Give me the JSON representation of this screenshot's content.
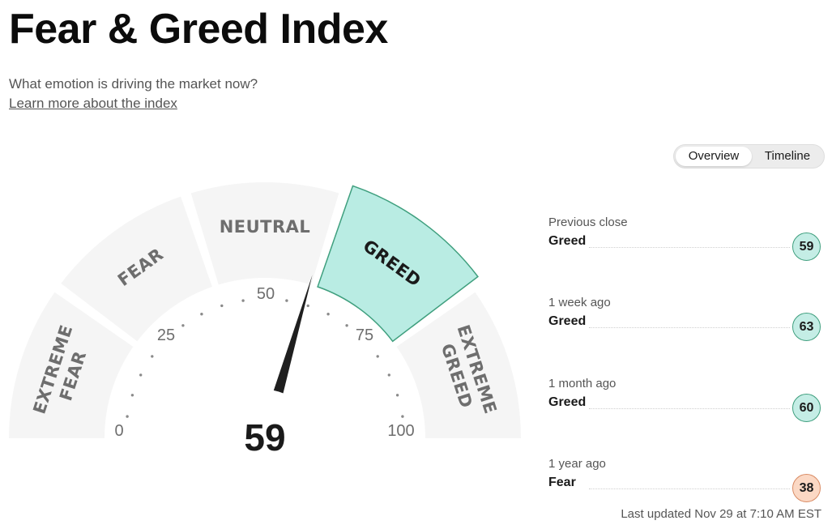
{
  "header": {
    "title": "Fear & Greed Index",
    "subtitle": "What emotion is driving the market now?",
    "learn_more": "Learn more about the index"
  },
  "gauge": {
    "value": "59",
    "min": 0,
    "max": 100,
    "active_zone": "GREED",
    "zones": [
      "EXTREME FEAR",
      "FEAR",
      "NEUTRAL",
      "GREED",
      "EXTREME GREED"
    ],
    "ticks": [
      "0",
      "25",
      "50",
      "75",
      "100"
    ],
    "colors": {
      "zone": "#f5f5f5",
      "active": "#b9ece3",
      "active_border": "#3f9f7e",
      "needle": "#1f1f1f"
    }
  },
  "toggle": {
    "overview": "Overview",
    "timeline": "Timeline",
    "selected": "Overview"
  },
  "history": [
    {
      "label": "Previous close",
      "rating": "Greed",
      "value": "59"
    },
    {
      "label": "1 week ago",
      "rating": "Greed",
      "value": "63"
    },
    {
      "label": "1 month ago",
      "rating": "Greed",
      "value": "60"
    },
    {
      "label": "1 year ago",
      "rating": "Fear",
      "value": "38"
    }
  ],
  "footer": {
    "last_updated": "Last updated Nov 29 at 7:10 AM EST"
  }
}
